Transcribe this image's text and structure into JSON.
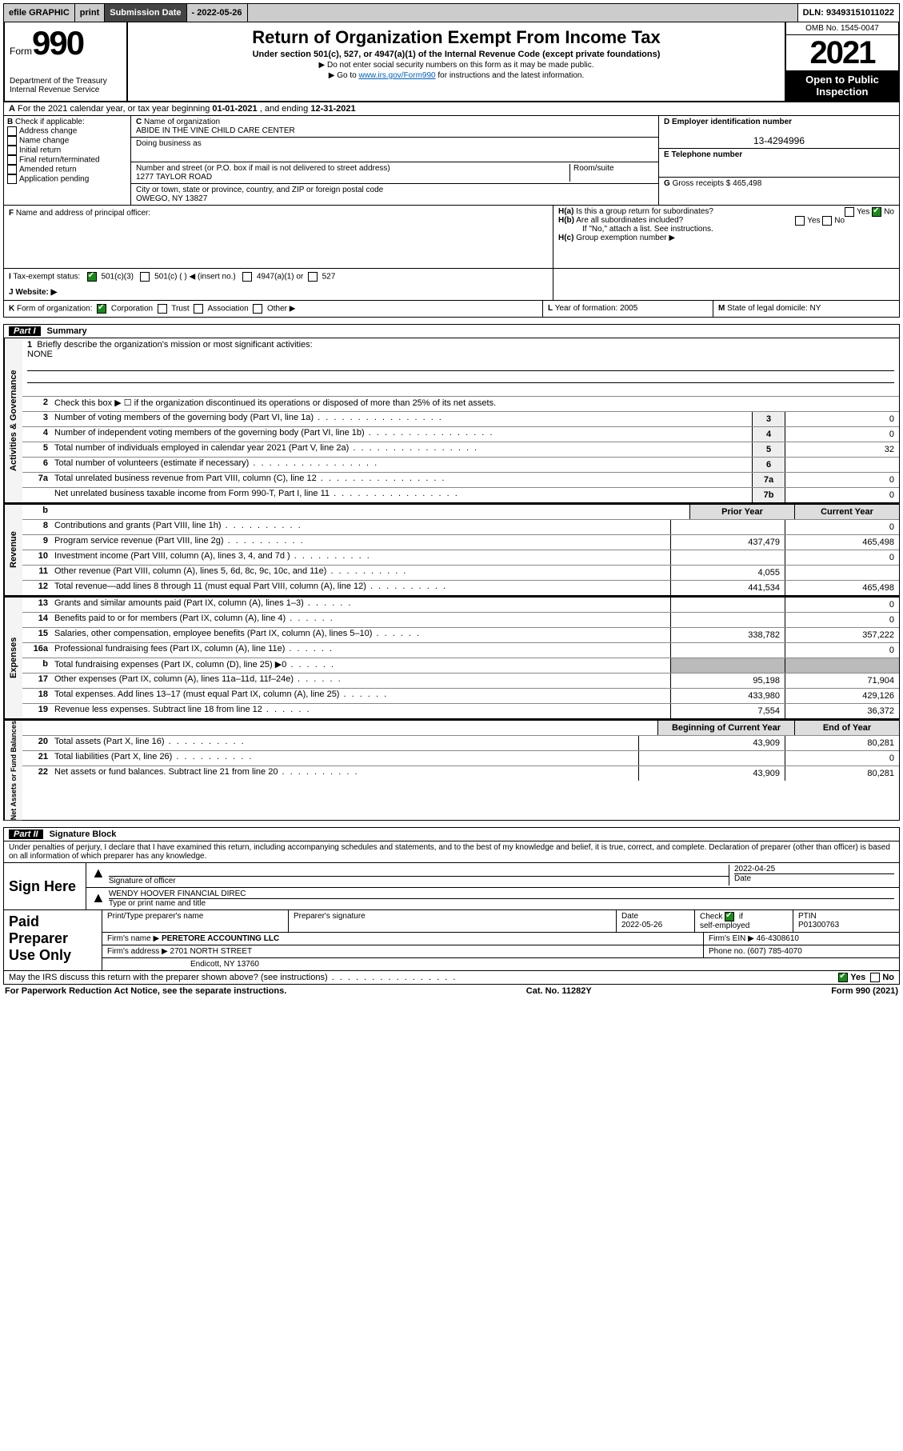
{
  "topbar": {
    "efile_label": "efile GRAPHIC",
    "print_btn": "print",
    "sub_label": "Submission Date",
    "sub_date": "- 2022-05-26",
    "dln": "DLN: 93493151011022"
  },
  "header": {
    "form_word": "Form",
    "form_no": "990",
    "dept": "Department of the Treasury",
    "irs": "Internal Revenue Service",
    "title": "Return of Organization Exempt From Income Tax",
    "sub1": "Under section 501(c), 527, or 4947(a)(1) of the Internal Revenue Code (except private foundations)",
    "note1": "▶ Do not enter social security numbers on this form as it may be made public.",
    "note2_pre": "▶ Go to ",
    "note2_link": "www.irs.gov/Form990",
    "note2_post": " for instructions and the latest information.",
    "omb": "OMB No. 1545-0047",
    "year": "2021",
    "open": "Open to Public Inspection"
  },
  "rowA": {
    "label": "A",
    "text": "For the 2021 calendar year, or tax year beginning ",
    "begin": "01-01-2021",
    "mid": " , and ending ",
    "end": "12-31-2021"
  },
  "colB": {
    "label": "B",
    "check_label": "Check if applicable:",
    "items": [
      "Address change",
      "Name change",
      "Initial return",
      "Final return/terminated",
      "Amended return",
      "Application pending"
    ]
  },
  "colC": {
    "c_label": "C",
    "name_label": "Name of organization",
    "name": "ABIDE IN THE VINE CHILD CARE CENTER",
    "dba_label": "Doing business as",
    "addr_label": "Number and street (or P.O. box if mail is not delivered to street address)",
    "room_label": "Room/suite",
    "addr": "1277 TAYLOR ROAD",
    "city_label": "City or town, state or province, country, and ZIP or foreign postal code",
    "city": "OWEGO, NY  13827"
  },
  "colDE": {
    "d_label": "D Employer identification number",
    "ein": "13-4294996",
    "e_label": "E Telephone number",
    "g_label": "G",
    "gross_label": "Gross receipts $",
    "gross": "465,498"
  },
  "blockF": {
    "f_label": "F",
    "f_text": "Name and address of principal officer:",
    "ha": "H(a)",
    "ha_text": "Is this a group return for subordinates?",
    "hb": "H(b)",
    "hb_text": "Are all subordinates included?",
    "hb_note": "If \"No,\" attach a list. See instructions.",
    "hc": "H(c)",
    "hc_text": "Group exemption number ▶",
    "yes": "Yes",
    "no": "No"
  },
  "blockI": {
    "i_label": "I",
    "i_text": "Tax-exempt status:",
    "opt1": "501(c)(3)",
    "opt2": "501(c) (  ) ◀ (insert no.)",
    "opt3": "4947(a)(1) or",
    "opt4": "527",
    "j_label": "J",
    "j_text": "Website: ▶"
  },
  "blockK": {
    "k_label": "K",
    "k_text": "Form of organization:",
    "opts": [
      "Corporation",
      "Trust",
      "Association",
      "Other ▶"
    ],
    "l_label": "L",
    "l_text": "Year of formation: ",
    "l_val": "2005",
    "m_label": "M",
    "m_text": "State of legal domicile: ",
    "m_val": "NY"
  },
  "part1": {
    "label": "Part I",
    "title": "Summary"
  },
  "mission": {
    "num": "1",
    "text": "Briefly describe the organization's mission or most significant activities:",
    "val": "NONE"
  },
  "gov_rows": [
    {
      "n": "2",
      "desc": "Check this box ▶ ☐  if the organization discontinued its operations or disposed of more than 25% of its net assets.",
      "cell": "",
      "val": ""
    },
    {
      "n": "3",
      "desc": "Number of voting members of the governing body (Part VI, line 1a)",
      "cell": "3",
      "val": "0"
    },
    {
      "n": "4",
      "desc": "Number of independent voting members of the governing body (Part VI, line 1b)",
      "cell": "4",
      "val": "0"
    },
    {
      "n": "5",
      "desc": "Total number of individuals employed in calendar year 2021 (Part V, line 2a)",
      "cell": "5",
      "val": "32"
    },
    {
      "n": "6",
      "desc": "Total number of volunteers (estimate if necessary)",
      "cell": "6",
      "val": ""
    },
    {
      "n": "7a",
      "desc": "Total unrelated business revenue from Part VIII, column (C), line 12",
      "cell": "7a",
      "val": "0"
    },
    {
      "n": "",
      "desc": "Net unrelated business taxable income from Form 990-T, Part I, line 11",
      "cell": "7b",
      "val": "0"
    }
  ],
  "twocol_header": {
    "b": "b",
    "prior": "Prior Year",
    "current": "Current Year"
  },
  "rev_rows": [
    {
      "n": "8",
      "desc": "Contributions and grants (Part VIII, line 1h)",
      "p": "",
      "c": "0"
    },
    {
      "n": "9",
      "desc": "Program service revenue (Part VIII, line 2g)",
      "p": "437,479",
      "c": "465,498"
    },
    {
      "n": "10",
      "desc": "Investment income (Part VIII, column (A), lines 3, 4, and 7d )",
      "p": "",
      "c": "0"
    },
    {
      "n": "11",
      "desc": "Other revenue (Part VIII, column (A), lines 5, 6d, 8c, 9c, 10c, and 11e)",
      "p": "4,055",
      "c": ""
    },
    {
      "n": "12",
      "desc": "Total revenue—add lines 8 through 11 (must equal Part VIII, column (A), line 12)",
      "p": "441,534",
      "c": "465,498"
    }
  ],
  "exp_rows": [
    {
      "n": "13",
      "desc": "Grants and similar amounts paid (Part IX, column (A), lines 1–3)",
      "p": "",
      "c": "0"
    },
    {
      "n": "14",
      "desc": "Benefits paid to or for members (Part IX, column (A), line 4)",
      "p": "",
      "c": "0"
    },
    {
      "n": "15",
      "desc": "Salaries, other compensation, employee benefits (Part IX, column (A), lines 5–10)",
      "p": "338,782",
      "c": "357,222"
    },
    {
      "n": "16a",
      "desc": "Professional fundraising fees (Part IX, column (A), line 11e)",
      "p": "",
      "c": "0"
    },
    {
      "n": "b",
      "desc": "Total fundraising expenses (Part IX, column (D), line 25) ▶0",
      "p": "grey",
      "c": "grey"
    },
    {
      "n": "17",
      "desc": "Other expenses (Part IX, column (A), lines 11a–11d, 11f–24e)",
      "p": "95,198",
      "c": "71,904"
    },
    {
      "n": "18",
      "desc": "Total expenses. Add lines 13–17 (must equal Part IX, column (A), line 25)",
      "p": "433,980",
      "c": "429,126"
    },
    {
      "n": "19",
      "desc": "Revenue less expenses. Subtract line 18 from line 12",
      "p": "7,554",
      "c": "36,372"
    }
  ],
  "net_header": {
    "begin": "Beginning of Current Year",
    "end": "End of Year"
  },
  "net_rows": [
    {
      "n": "20",
      "desc": "Total assets (Part X, line 16)",
      "p": "43,909",
      "c": "80,281"
    },
    {
      "n": "21",
      "desc": "Total liabilities (Part X, line 26)",
      "p": "",
      "c": "0"
    },
    {
      "n": "22",
      "desc": "Net assets or fund balances. Subtract line 21 from line 20",
      "p": "43,909",
      "c": "80,281"
    }
  ],
  "vtabs": {
    "gov": "Activities & Governance",
    "rev": "Revenue",
    "exp": "Expenses",
    "net": "Net Assets or Fund Balances"
  },
  "part2": {
    "label": "Part II",
    "title": "Signature Block"
  },
  "sig": {
    "declare": "Under penalties of perjury, I declare that I have examined this return, including accompanying schedules and statements, and to the best of my knowledge and belief, it is true, correct, and complete. Declaration of preparer (other than officer) is based on all information of which preparer has any knowledge.",
    "sign_here": "Sign Here",
    "sig_officer": "Signature of officer",
    "date_label": "Date",
    "date_val": "2022-04-25",
    "name_val": "WENDY HOOVER  FINANCIAL DIREC",
    "name_label": "Type or print name and title"
  },
  "prep": {
    "label": "Paid Preparer Use Only",
    "h1": "Print/Type preparer's name",
    "h2": "Preparer's signature",
    "h3": "Date",
    "h3v": "2022-05-26",
    "h4": "Check ☑ if self-employed",
    "h5": "PTIN",
    "h5v": "P01300763",
    "firm_name_l": "Firm's name    ▶",
    "firm_name": "PERETORE ACCOUNTING LLC",
    "firm_ein_l": "Firm's EIN ▶",
    "firm_ein": "46-4308610",
    "firm_addr_l": "Firm's address ▶",
    "firm_addr1": "2701 NORTH STREET",
    "firm_addr2": "Endicott, NY  13760",
    "phone_l": "Phone no.",
    "phone": "(607) 785-4070"
  },
  "may_irs": {
    "text": "May the IRS discuss this return with the preparer shown above? (see instructions)",
    "yes": "Yes",
    "no": "No"
  },
  "footer": {
    "left": "For Paperwork Reduction Act Notice, see the separate instructions.",
    "mid": "Cat. No. 11282Y",
    "right_a": "Form ",
    "right_b": "990",
    "right_c": " (2021)"
  }
}
